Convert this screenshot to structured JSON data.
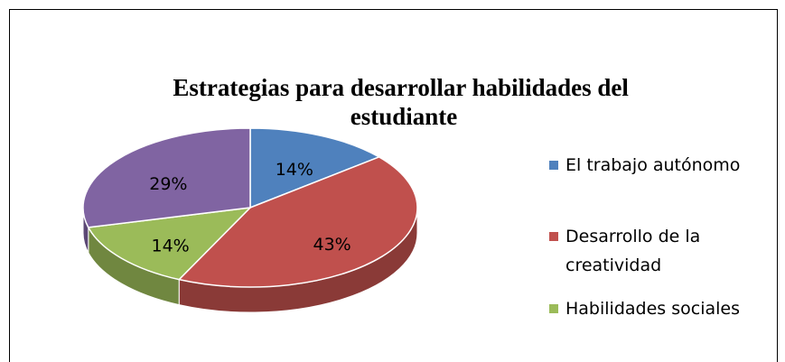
{
  "chart_data": {
    "type": "pie",
    "title": "Estrategias para desarrollar habilidades del estudiante",
    "categories": [
      "El trabajo autónomo",
      "Desarrollo de la creatividad",
      "Habilidades sociales",
      null
    ],
    "values": [
      14,
      43,
      14,
      29
    ],
    "value_labels": [
      "14%",
      "43%",
      "14%",
      "29%"
    ],
    "colors": [
      "#4f81bd",
      "#c0504d",
      "#9bbb59",
      "#8064a2"
    ],
    "legend": "right"
  }
}
